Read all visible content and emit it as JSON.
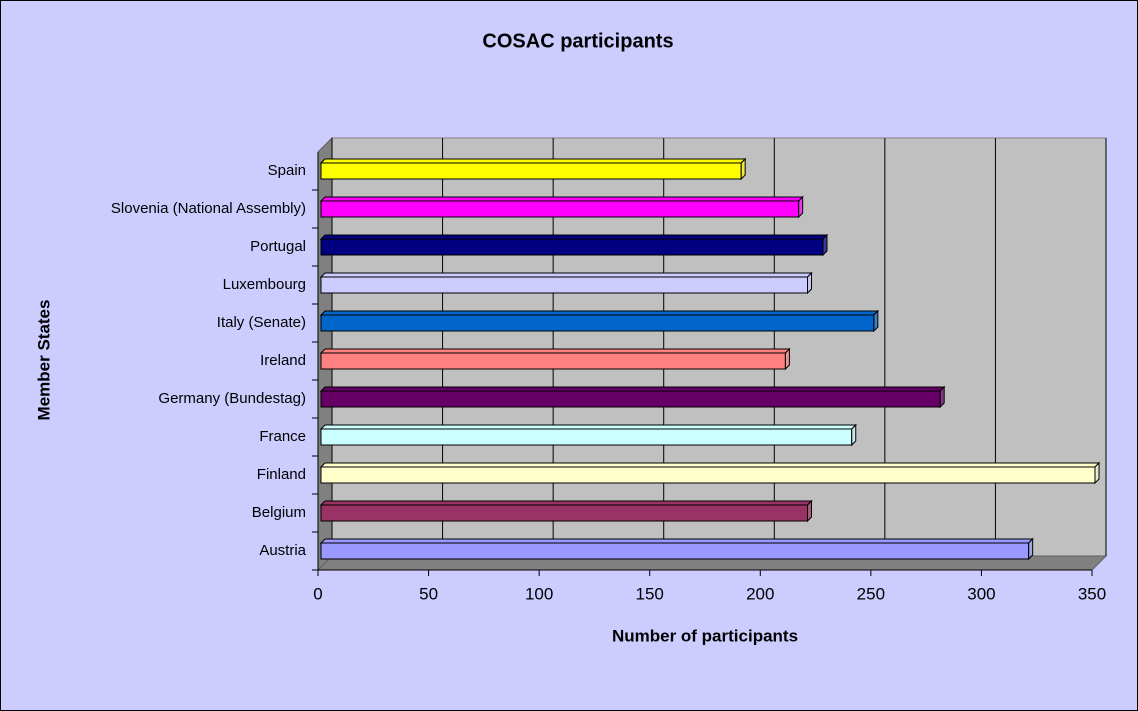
{
  "chart_data": {
    "type": "bar",
    "orientation": "horizontal",
    "title": "COSAC  participants",
    "x_label": "Number of participants",
    "y_label": "Member States",
    "categories": [
      "Austria",
      "Belgium",
      "Finland",
      "France",
      "Germany (Bundestag)",
      "Ireland",
      "Italy (Senate)",
      "Luxembourg",
      "Portugal",
      "Slovenia (National Assembly)",
      "Spain"
    ],
    "values": [
      320,
      220,
      350,
      240,
      280,
      210,
      250,
      220,
      227,
      216,
      190
    ],
    "colors": [
      "#9999ff",
      "#993366",
      "#ffffcc",
      "#ccffff",
      "#660066",
      "#ff8080",
      "#0066cc",
      "#ccccff",
      "#000080",
      "#ff00ff",
      "#ffff00"
    ],
    "xlim": [
      0,
      350
    ],
    "xticks": [
      0,
      50,
      100,
      150,
      200,
      250,
      300,
      350
    ],
    "grid": true
  }
}
